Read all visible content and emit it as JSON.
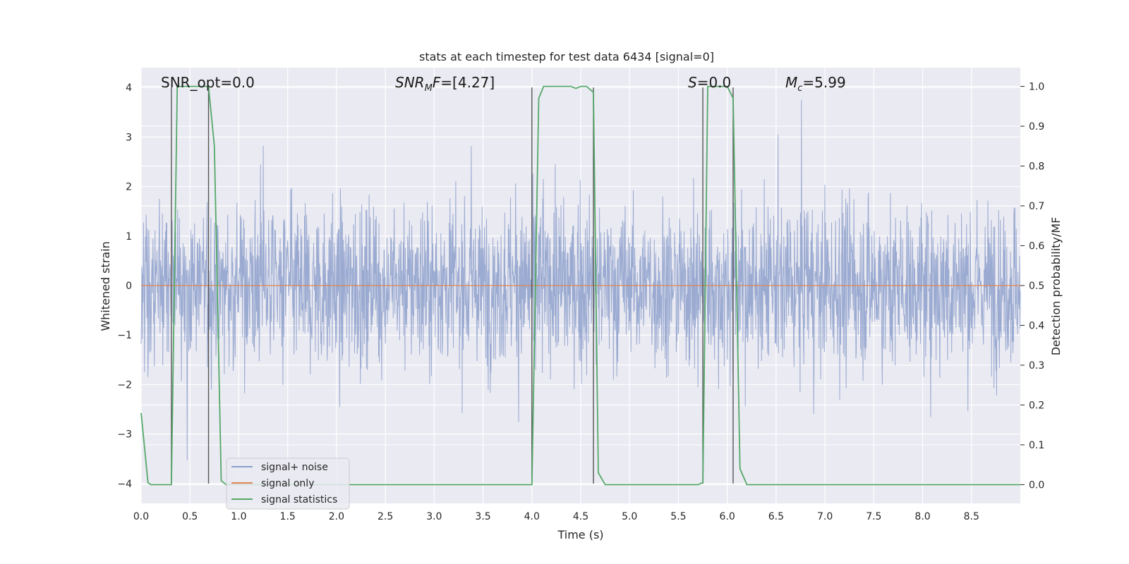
{
  "chart_data": {
    "type": "line",
    "title": "stats at each timestep for test data 6434 [signal=0]",
    "xlabel": "Time (s)",
    "ylabel": "Whitened strain",
    "y2label": "Detection probability/MF",
    "xlim": [
      0.0,
      9.0
    ],
    "ylim": [
      -4.4,
      4.4
    ],
    "y2lim": [
      -0.047,
      1.047
    ],
    "x_ticks": [
      "0.0",
      "0.5",
      "1.0",
      "1.5",
      "2.0",
      "2.5",
      "3.0",
      "3.5",
      "4.0",
      "4.5",
      "5.0",
      "5.5",
      "6.0",
      "6.5",
      "7.0",
      "7.5",
      "8.0",
      "8.5"
    ],
    "y_ticks": [
      "−4",
      "−3",
      "−2",
      "−1",
      "0",
      "1",
      "2",
      "3",
      "4"
    ],
    "y2_ticks": [
      "0.0",
      "0.1",
      "0.2",
      "0.3",
      "0.4",
      "0.5",
      "0.6",
      "0.7",
      "0.8",
      "0.9",
      "1.0"
    ],
    "grid": true,
    "legend_position": "lower-left",
    "annotations": {
      "snr_opt": "SNR_opt=0.0",
      "snr_mf_main": "SNR",
      "snr_mf_sub": "M",
      "snr_mf_rest": "F",
      "snr_mf_value": "=[4.27]",
      "s_main": "S",
      "s_value": "=0.0",
      "mc_main": "M",
      "mc_sub": "c",
      "mc_value": "=5.99"
    },
    "series": [
      {
        "name": "signal+ noise",
        "color": "#8c9fcb",
        "axis": "left",
        "description_levels": {
          "typical_abs_max": 2.5,
          "peak_max": 3.75,
          "peak_min": -3.6
        }
      },
      {
        "name": "signal only",
        "color": "#dd8452",
        "axis": "left",
        "x": [
          0.0,
          9.0
        ],
        "y": [
          0.0,
          0.0
        ]
      },
      {
        "name": "signal statistics",
        "color": "#55a868",
        "axis": "right",
        "x": [
          0.0,
          0.07,
          0.1,
          0.15,
          0.2,
          0.25,
          0.3,
          0.31,
          0.37,
          0.43,
          0.5,
          0.55,
          0.62,
          0.69,
          0.75,
          0.82,
          0.87,
          1.0,
          1.5,
          2.0,
          2.5,
          3.0,
          3.5,
          3.8,
          4.0,
          4.07,
          4.12,
          4.2,
          4.3,
          4.4,
          4.45,
          4.5,
          4.56,
          4.63,
          4.68,
          4.75,
          4.8,
          5.0,
          5.3,
          5.6,
          5.7,
          5.75,
          5.8,
          5.87,
          5.95,
          6.0,
          6.06,
          6.13,
          6.2,
          6.3,
          6.5,
          7.0,
          7.5,
          8.0,
          8.5,
          9.0
        ],
        "y": [
          0.18,
          0.005,
          0.0,
          0.0,
          0.0,
          0.0,
          0.0,
          0.0,
          1.0,
          1.0,
          1.0,
          1.0,
          1.0,
          1.0,
          0.85,
          0.01,
          0.0,
          0.0,
          0.0,
          0.0,
          0.0,
          0.0,
          0.0,
          0.0,
          0.0,
          0.97,
          1.0,
          1.0,
          1.0,
          1.0,
          0.995,
          1.0,
          1.0,
          0.985,
          0.03,
          0.0,
          0.0,
          0.0,
          0.0,
          0.0,
          0.0,
          0.005,
          1.0,
          1.0,
          1.0,
          1.0,
          0.97,
          0.04,
          0.0,
          0.0,
          0.0,
          0.0,
          0.0,
          0.0,
          0.0,
          0.0
        ]
      }
    ],
    "vertical_markers": {
      "color": "#555555",
      "x": [
        0.31,
        0.69,
        4.0,
        4.63,
        5.75,
        6.06
      ],
      "y_top": 4.0,
      "y_bottom": -4.0
    }
  }
}
